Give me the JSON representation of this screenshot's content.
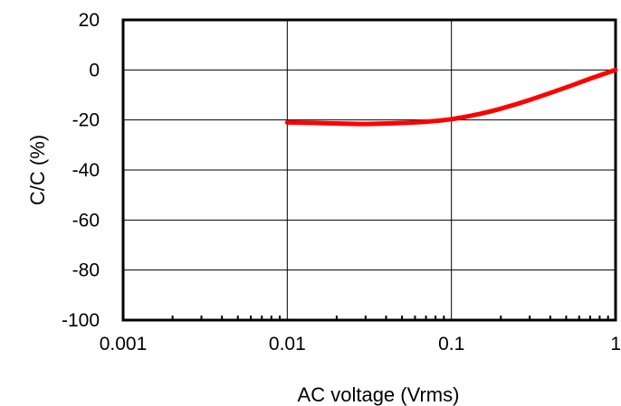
{
  "chart_data": {
    "type": "line",
    "xlabel": "AC voltage (Vrms)",
    "ylabel": "C/C (%)",
    "xscale": "log",
    "xlim": [
      0.001,
      1
    ],
    "ylim": [
      -100,
      20
    ],
    "xticks": [
      "0.001",
      "0.01",
      "0.1",
      "1"
    ],
    "yticks": [
      "20",
      "0",
      "-20",
      "-40",
      "-60",
      "-80",
      "-100"
    ],
    "grid": true,
    "series": [
      {
        "color": "#ff0000",
        "x": [
          0.01,
          0.015,
          0.02,
          0.03,
          0.05,
          0.07,
          0.1,
          0.15,
          0.2,
          0.3,
          0.5,
          0.7,
          1.0
        ],
        "y": [
          -21.0,
          -21.2,
          -21.4,
          -21.6,
          -21.2,
          -20.7,
          -19.7,
          -17.5,
          -15.5,
          -12.0,
          -7.0,
          -3.5,
          0.0
        ]
      }
    ]
  }
}
